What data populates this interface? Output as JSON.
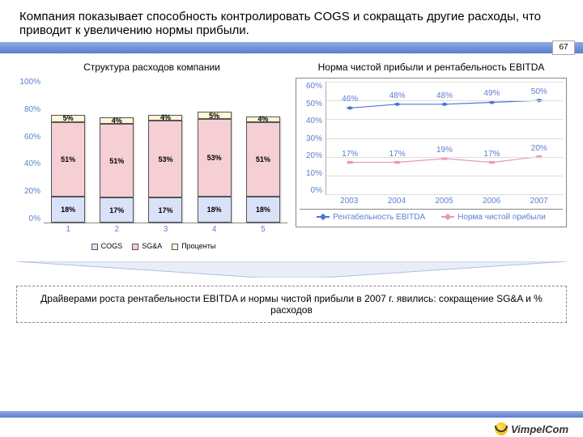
{
  "page_number": "67",
  "title": "Компания показывает способность контролировать COGS и сокращать другие расходы, что приводит к увеличению нормы прибыли.",
  "left_chart": {
    "type": "stacked-bar",
    "title": "Структура расходов компании",
    "y_ticks": [
      "100%",
      "80%",
      "60%",
      "40%",
      "20%",
      "0%"
    ],
    "y_max": 100,
    "categories": [
      "1",
      "2",
      "3",
      "4",
      "5"
    ],
    "series": [
      {
        "name": "COGS",
        "color": "#d9e2f8",
        "values": [
          18,
          17,
          17,
          18,
          18
        ],
        "labels": [
          "18%",
          "17%",
          "17%",
          "18%",
          "18%"
        ]
      },
      {
        "name": "SG&A",
        "color": "#f5cfd4",
        "values": [
          51,
          51,
          53,
          53,
          51
        ],
        "labels": [
          "51%",
          "51%",
          "53%",
          "53%",
          "51%"
        ]
      },
      {
        "name": "Проценты",
        "color": "#fff7d6",
        "values": [
          5,
          4,
          4,
          5,
          4
        ],
        "labels": [
          "5%",
          "4%",
          "4%",
          "5%",
          "4%"
        ]
      }
    ],
    "legend_label": "COGS  SG&A  Проценты",
    "legend": [
      "COGS",
      "SG&A",
      "Проценты"
    ]
  },
  "right_chart": {
    "type": "line",
    "title": "Норма чистой прибыли и рентабельность EBITDA",
    "y_ticks": [
      "60%",
      "50%",
      "40%",
      "30%",
      "20%",
      "10%",
      "0%"
    ],
    "y_max": 60,
    "categories": [
      "2003",
      "2004",
      "2005",
      "2006",
      "2007"
    ],
    "series": [
      {
        "name": "Рентабельность EBITDA",
        "color": "#4a78d4",
        "marker": "diamond",
        "values": [
          46,
          48,
          48,
          49,
          50
        ],
        "labels": [
          "46%",
          "48%",
          "48%",
          "49%",
          "50%"
        ]
      },
      {
        "name": "Норма чистой прибыли",
        "color": "#e89ab3",
        "marker": "square",
        "values": [
          17,
          17,
          19,
          17,
          20
        ],
        "labels": [
          "17%",
          "17%",
          "19%",
          "17%",
          "20%"
        ]
      }
    ]
  },
  "callout": "Драйверами роста рентабельности EBITDA и нормы чистой прибыли в 2007 г. явились: сокращение SG&A и % расходов",
  "logo_text": "VimpelCom"
}
